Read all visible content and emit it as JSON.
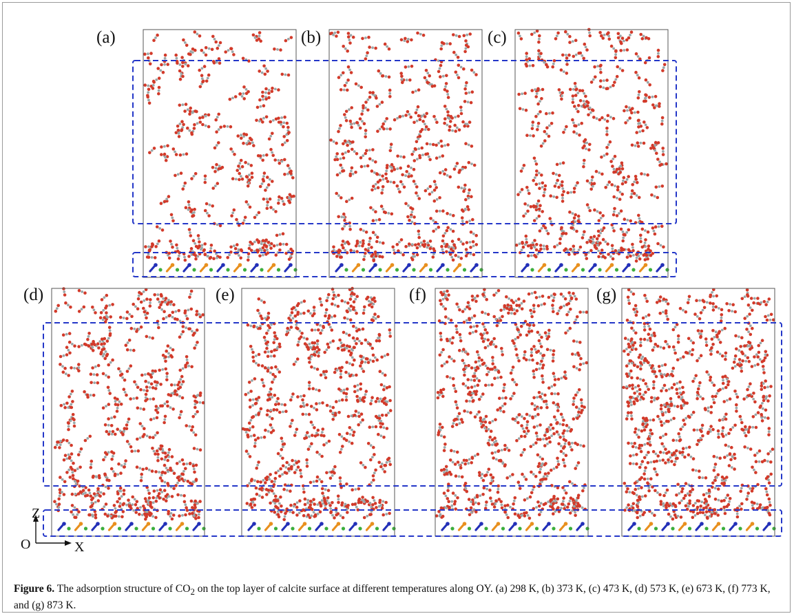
{
  "figure": {
    "panels": [
      {
        "label": "(a)",
        "temperature": "298 K"
      },
      {
        "label": "(b)",
        "temperature": "373 K"
      },
      {
        "label": "(c)",
        "temperature": "473 K"
      },
      {
        "label": "(d)",
        "temperature": "573 K"
      },
      {
        "label": "(e)",
        "temperature": "673 K"
      },
      {
        "label": "(f)",
        "temperature": "773 K"
      },
      {
        "label": "(g)",
        "temperature": "873 K"
      }
    ],
    "axes": {
      "vertical": "Z",
      "horizontal": "X",
      "origin": "O"
    },
    "colors": {
      "oxygen": "#d23a2a",
      "carbon": "#9aa7a8",
      "highlight_box": "#2336c8",
      "calcium_green": "#3cae3c",
      "carbonate_blue": "#2330b8",
      "carbonate_orange": "#e8901e"
    }
  },
  "caption": {
    "label": "Figure 6.",
    "text_before_sub": " The adsorption structure of CO",
    "subscript": "2",
    "text_after_sub": " on the top layer of calcite surface at different temperatures along OY. (a) 298 K, (b) 373 K, (c) 473 K, (d) 573 K, (e) 673 K, (f) 773 K, and (g) 873 K."
  }
}
